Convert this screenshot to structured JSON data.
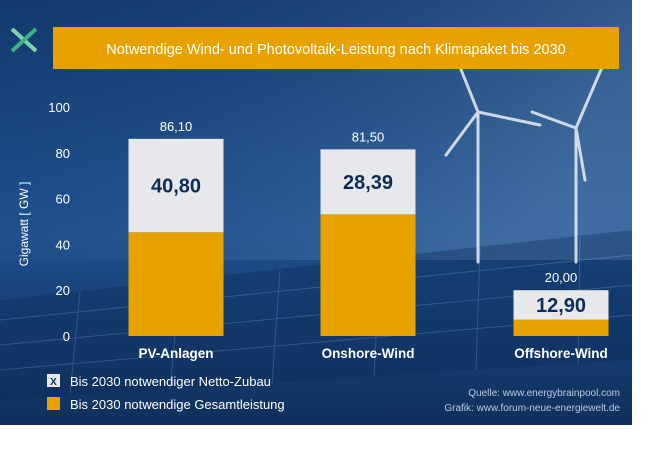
{
  "header": {
    "title": "Notwendige Wind- und Photovoltaik-Leistung nach Klimapaket bis 2030",
    "logo_icon": "x-logo-icon"
  },
  "legend": {
    "items": [
      {
        "marker": "X",
        "label": "Bis 2030 notwendiger Netto-Zubau",
        "color": "#e6e8eb"
      },
      {
        "marker": "",
        "label": "Bis 2030 notwendige Gesamtleistung",
        "color": "#e8a200"
      }
    ]
  },
  "source": {
    "line1": "Quelle: www.energybrainpool.com",
    "line2": "Grafik: www.forum-neue-energiewelt.de"
  },
  "chart_data": {
    "type": "bar",
    "stacked": true,
    "title": "Notwendige Wind- und Photovoltaik-Leistung nach Klimapaket bis 2030",
    "ylabel": "Gigawatt [ GW ]",
    "ylim": [
      0,
      100
    ],
    "yticks": [
      "0",
      "20",
      "40",
      "60",
      "80",
      "100"
    ],
    "grid": false,
    "legend_position": "bottom-left",
    "categories": [
      "PV-Anlagen",
      "Onshore-Wind",
      "Offshore-Wind"
    ],
    "totals": [
      86.1,
      81.5,
      20.0
    ],
    "totals_labels": [
      "86,10",
      "81,50",
      "20,00"
    ],
    "series": [
      {
        "name": "Bis 2030 notwendige Gesamtleistung",
        "values": [
          45.3,
          53.11,
          7.1
        ],
        "color": "#e8a200"
      },
      {
        "name": "Bis 2030 notwendiger Netto-Zubau",
        "values": [
          40.8,
          28.39,
          12.9
        ],
        "labels": [
          "40,80",
          "28,39",
          "12,90"
        ],
        "color": "#e6e8eb"
      }
    ]
  }
}
